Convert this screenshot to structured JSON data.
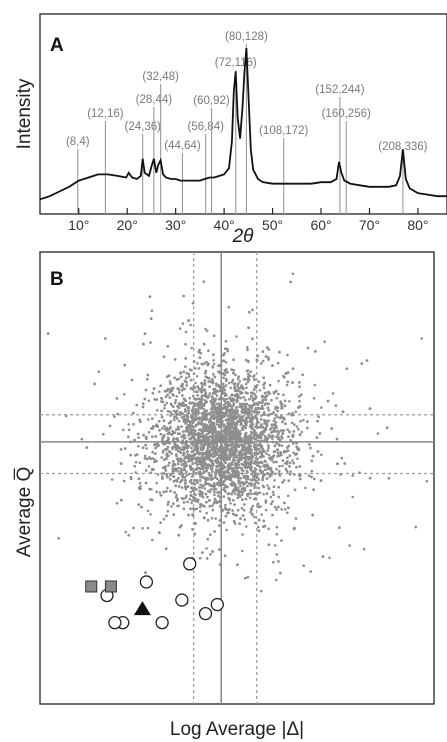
{
  "chart_data": [
    {
      "type": "line",
      "panel": "A",
      "xlabel": "2θ",
      "ylabel": "Intensity",
      "xlim": [
        2,
        86
      ],
      "x_ticks": [
        {
          "value": 10,
          "label": "10°"
        },
        {
          "value": 20,
          "label": "20°"
        },
        {
          "value": 30,
          "label": "30°"
        },
        {
          "value": 40,
          "label": "40°"
        },
        {
          "value": 50,
          "label": "50°"
        },
        {
          "value": 60,
          "label": "60°"
        },
        {
          "value": 70,
          "label": "70°"
        },
        {
          "value": 80,
          "label": "80°"
        }
      ],
      "peaks": [
        {
          "x": 9.8,
          "label": "(8,4)"
        },
        {
          "x": 15.5,
          "label": "(12,16)"
        },
        {
          "x": 23.2,
          "label": "(24,36)"
        },
        {
          "x": 25.5,
          "label": "(28,44)"
        },
        {
          "x": 26.9,
          "label": "(32,48)"
        },
        {
          "x": 31.4,
          "label": "(44,64)"
        },
        {
          "x": 36.2,
          "label": "(56,84)"
        },
        {
          "x": 37.4,
          "label": "(60,92)"
        },
        {
          "x": 42.4,
          "label": "(72,116)"
        },
        {
          "x": 44.6,
          "label": "(80,128)"
        },
        {
          "x": 52.3,
          "label": "(108,172)"
        },
        {
          "x": 63.9,
          "label": "(152,244)"
        },
        {
          "x": 65.2,
          "label": "(160,256)"
        },
        {
          "x": 76.9,
          "label": "(208,336)"
        }
      ],
      "series": [
        {
          "values_x": [
            2,
            4,
            6,
            8,
            10,
            12,
            14,
            16,
            18,
            19.8,
            20.3,
            21,
            22,
            22.8,
            23.2,
            23.6,
            24.5,
            25,
            25.5,
            26,
            26.4,
            26.9,
            27.4,
            28,
            29,
            30,
            31,
            32,
            33,
            34,
            35,
            36,
            37,
            38,
            39,
            40,
            41,
            41.6,
            42.0,
            42.4,
            42.8,
            43.3,
            43.8,
            44.2,
            44.6,
            45.0,
            45.5,
            46,
            47,
            48,
            50,
            52,
            54,
            56,
            58,
            60,
            62,
            63.2,
            63.7,
            64.2,
            64.8,
            65.5,
            66,
            68,
            70,
            72,
            74,
            75.5,
            76.3,
            76.9,
            77.5,
            78.3,
            80,
            82,
            84,
            86
          ],
          "values_y": [
            0.03,
            0.05,
            0.08,
            0.11,
            0.15,
            0.17,
            0.19,
            0.19,
            0.18,
            0.17,
            0.2,
            0.17,
            0.16,
            0.18,
            0.29,
            0.2,
            0.18,
            0.24,
            0.29,
            0.2,
            0.25,
            0.28,
            0.19,
            0.17,
            0.16,
            0.16,
            0.15,
            0.15,
            0.15,
            0.15,
            0.15,
            0.16,
            0.17,
            0.17,
            0.18,
            0.19,
            0.23,
            0.4,
            0.72,
            0.85,
            0.55,
            0.42,
            0.62,
            0.85,
            1.0,
            0.72,
            0.35,
            0.22,
            0.16,
            0.14,
            0.13,
            0.13,
            0.13,
            0.13,
            0.13,
            0.14,
            0.14,
            0.16,
            0.27,
            0.2,
            0.15,
            0.14,
            0.13,
            0.12,
            0.11,
            0.11,
            0.11,
            0.12,
            0.18,
            0.35,
            0.16,
            0.1,
            0.07,
            0.06,
            0.05,
            0.05
          ]
        }
      ]
    },
    {
      "type": "scatter",
      "panel": "B",
      "xlabel": "Log Average |Δ|",
      "ylabel": "Average Q̅",
      "grid": true,
      "cloud_center": [
        0.46,
        0.58
      ],
      "solid_lines": {
        "x": 0.46,
        "y": 0.58
      },
      "dashed_lines": {
        "x": [
          0.39,
          0.55
        ],
        "y": [
          0.51,
          0.64
        ]
      },
      "highlighted_points": {
        "circles": [
          [
            0.38,
            0.31
          ],
          [
            0.27,
            0.27
          ],
          [
            0.17,
            0.24
          ],
          [
            0.36,
            0.23
          ],
          [
            0.45,
            0.22
          ],
          [
            0.42,
            0.2
          ],
          [
            0.21,
            0.18
          ],
          [
            0.19,
            0.18
          ],
          [
            0.31,
            0.18
          ]
        ],
        "squares": [
          [
            0.13,
            0.26
          ],
          [
            0.18,
            0.26
          ]
        ],
        "triangles": [
          [
            0.26,
            0.21
          ]
        ]
      }
    }
  ]
}
